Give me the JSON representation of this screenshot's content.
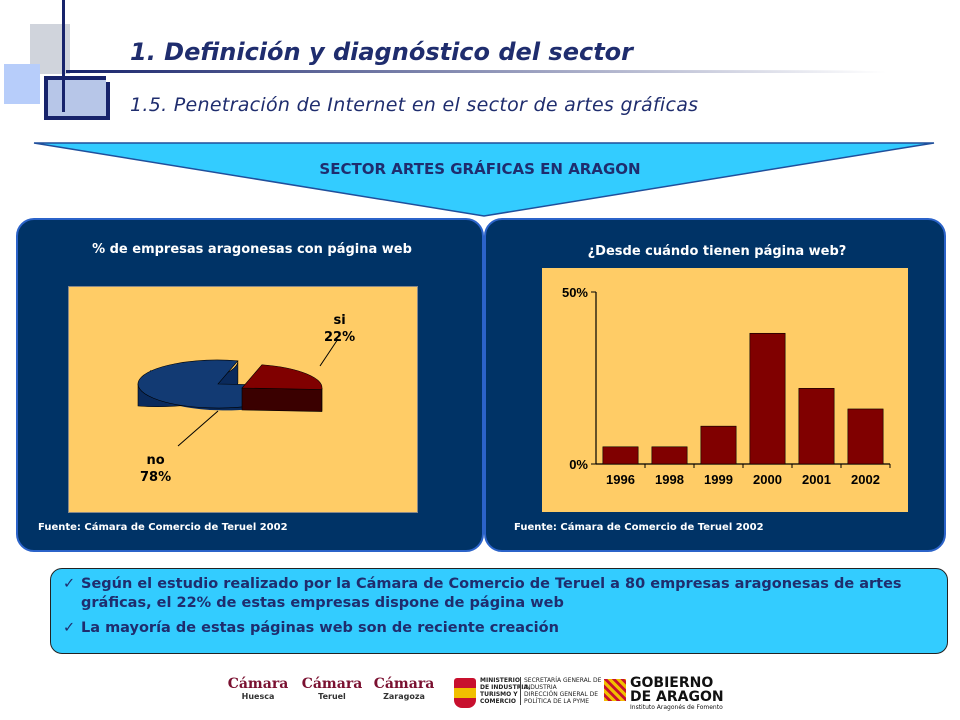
{
  "header": {
    "title": "1.  Definición y diagnóstico del sector",
    "subtitle": "1.5. Penetración de Internet en el sector de artes gráficas"
  },
  "banner": {
    "label": "SECTOR ARTES GRÁFICAS EN ARAGON"
  },
  "left_panel": {
    "title": "% de empresas aragonesas con página web",
    "source": "Fuente: Cámara de Comercio de Teruel 2002"
  },
  "right_panel": {
    "title": "¿Desde cuándo tienen página web?",
    "source": "Fuente: Cámara de Comercio de Teruel 2002"
  },
  "chart_data": [
    {
      "type": "pie",
      "labels": [
        "si",
        "no"
      ],
      "values": [
        22,
        78
      ],
      "value_labels": [
        "22%",
        "78%"
      ],
      "colors": [
        "#800000",
        "#123a73"
      ]
    },
    {
      "type": "bar",
      "categories": [
        "1996",
        "1998",
        "1999",
        "2000",
        "2001",
        "2002"
      ],
      "values": [
        5,
        5,
        11,
        38,
        22,
        16
      ],
      "ylim": [
        0,
        50
      ],
      "yticks": [
        "0%",
        "50%"
      ],
      "color": "#800000",
      "grid": false
    }
  ],
  "notes": [
    "Según el estudio realizado por la Cámara de Comercio de Teruel a 80 empresas aragonesas de artes gráficas, el 22% de estas empresas dispone de página web",
    "La mayoría de estas páginas web son de reciente creación"
  ],
  "footer_logos": {
    "camara_label": "Cámara",
    "huesca": "Huesca",
    "teruel": "Teruel",
    "zaragoza": "Zaragoza",
    "ministerio": [
      "MINISTERIO",
      "DE INDUSTRIA,",
      "TURISMO Y",
      "COMERCIO"
    ],
    "secretaria": [
      "SECRETARÍA GENERAL DE",
      "INDUSTRIA",
      "DIRECCIÓN GENERAL DE",
      "POLÍTICA DE LA PYME"
    ],
    "gobierno": [
      "GOBIERNO",
      "DE ARAGON"
    ],
    "instituto": "Instituto Aragonés de Fomento"
  }
}
